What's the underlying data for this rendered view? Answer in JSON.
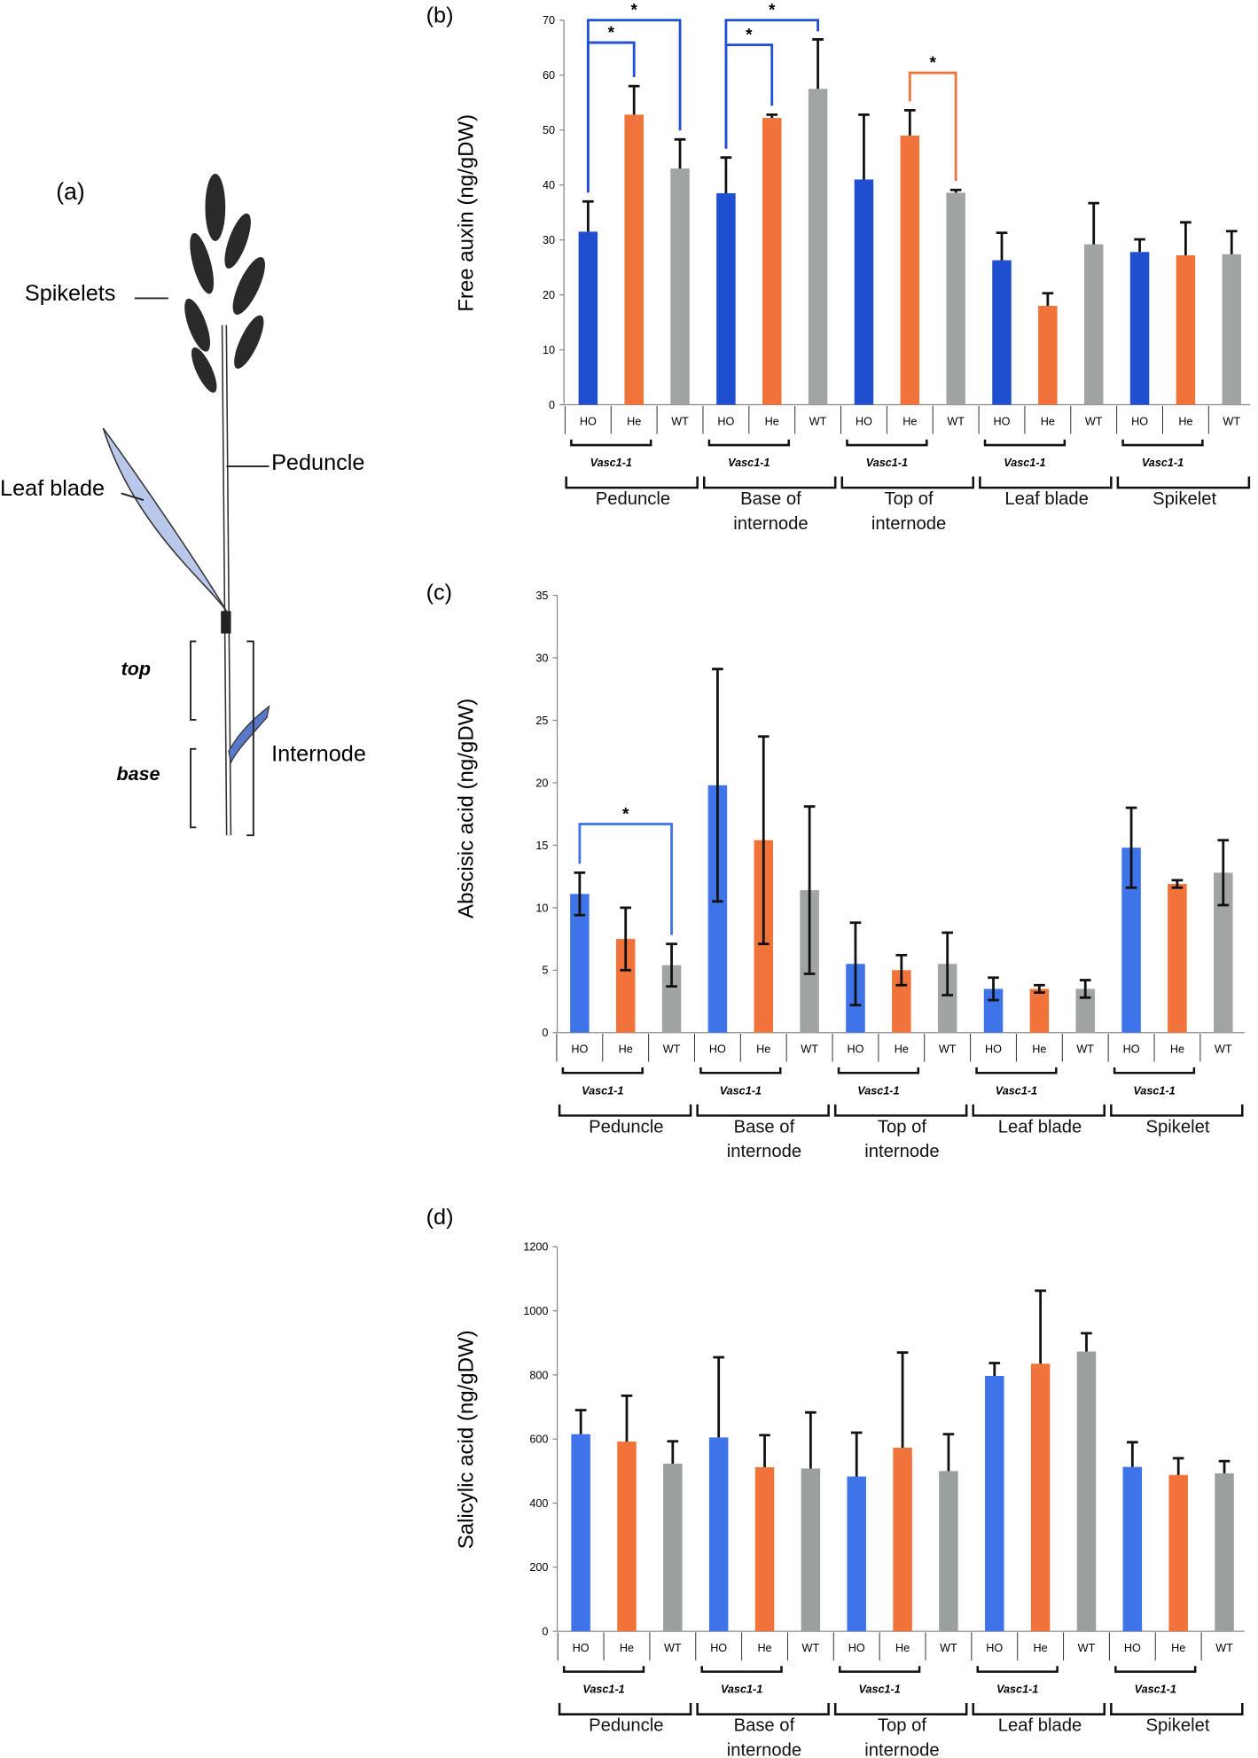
{
  "figure": {
    "a": {
      "panel": "(a)",
      "labels": [
        "Spikelets",
        "Peduncle",
        "Leaf blade",
        "top",
        "base",
        "Internode"
      ]
    }
  },
  "chart_data": [
    {
      "type": "bar",
      "panel": "(b)",
      "y_label": "Free auxin (ng/gDW)",
      "group_label": "Vasc1-1",
      "categories": [
        "Peduncle",
        "Base of internode",
        "Top of internode",
        "Leaf blade",
        "Spikelet"
      ],
      "series": [
        {
          "name": "HO",
          "color": "#1f4fcf",
          "values": [
            31.5,
            38.5,
            41,
            26.3,
            27.8
          ],
          "errors": [
            5.5,
            6.5,
            11.8,
            5,
            2.3
          ]
        },
        {
          "name": "He",
          "color": "#f0733a",
          "values": [
            52.8,
            52.2,
            49,
            18,
            27.2
          ],
          "errors": [
            5.2,
            0.6,
            4.6,
            2.3,
            6
          ]
        },
        {
          "name": "WT",
          "color": "#a0a5a2",
          "values": [
            43,
            57.5,
            38.6,
            29.2,
            27.4
          ],
          "errors": [
            5.3,
            9,
            0.5,
            7.5,
            4.2
          ]
        }
      ],
      "ylim": [
        0,
        70
      ],
      "yticks": [
        0,
        10,
        20,
        30,
        40,
        50,
        60,
        70
      ],
      "error_bars": "upper",
      "annotations": [
        "*",
        "*",
        "*",
        "*",
        "*"
      ]
    },
    {
      "type": "bar",
      "panel": "(c)",
      "y_label": "Abscisic acid (ng/gDW)",
      "group_label": "Vasc1-1",
      "categories": [
        "Peduncle",
        "Base of internode",
        "Top of internode",
        "Leaf blade",
        "Spikelet"
      ],
      "series": [
        {
          "name": "HO",
          "color": "#3f73e8",
          "values": [
            11.1,
            19.8,
            5.5,
            3.5,
            14.8
          ],
          "errors": [
            1.7,
            9.3,
            3.3,
            0.9,
            3.2
          ]
        },
        {
          "name": "He",
          "color": "#f0733a",
          "values": [
            7.5,
            15.4,
            5,
            3.5,
            11.9
          ],
          "errors": [
            2.5,
            8.3,
            1.2,
            0.3,
            0.3
          ]
        },
        {
          "name": "WT",
          "color": "#a0a5a2",
          "values": [
            5.4,
            11.4,
            5.5,
            3.5,
            12.8
          ],
          "errors": [
            1.7,
            6.7,
            2.5,
            0.7,
            2.6
          ]
        }
      ],
      "ylim": [
        0,
        35
      ],
      "yticks": [
        0,
        5,
        10,
        15,
        20,
        25,
        30,
        35
      ],
      "error_bars": "both",
      "annotations": [
        "*"
      ]
    },
    {
      "type": "bar",
      "panel": "(d)",
      "y_label": "Salicylic acid (ng/gDW)",
      "group_label": "Vasc1-1",
      "categories": [
        "Peduncle",
        "Base of internode",
        "Top of internode",
        "Leaf blade",
        "Spikelet"
      ],
      "series": [
        {
          "name": "HO",
          "color": "#3f73e8",
          "values": [
            615,
            605,
            483,
            797,
            513
          ],
          "errors": [
            75,
            250,
            137,
            40,
            77
          ]
        },
        {
          "name": "He",
          "color": "#f0733a",
          "values": [
            592,
            512,
            573,
            835,
            488
          ],
          "errors": [
            143,
            100,
            297,
            228,
            52
          ]
        },
        {
          "name": "WT",
          "color": "#99a09d",
          "values": [
            523,
            508,
            500,
            873,
            493
          ],
          "errors": [
            70,
            175,
            115,
            57,
            38
          ]
        }
      ],
      "ylim": [
        0,
        1200
      ],
      "yticks": [
        0,
        200,
        400,
        600,
        800,
        1000,
        1200
      ],
      "error_bars": "upper",
      "annotations": []
    }
  ]
}
